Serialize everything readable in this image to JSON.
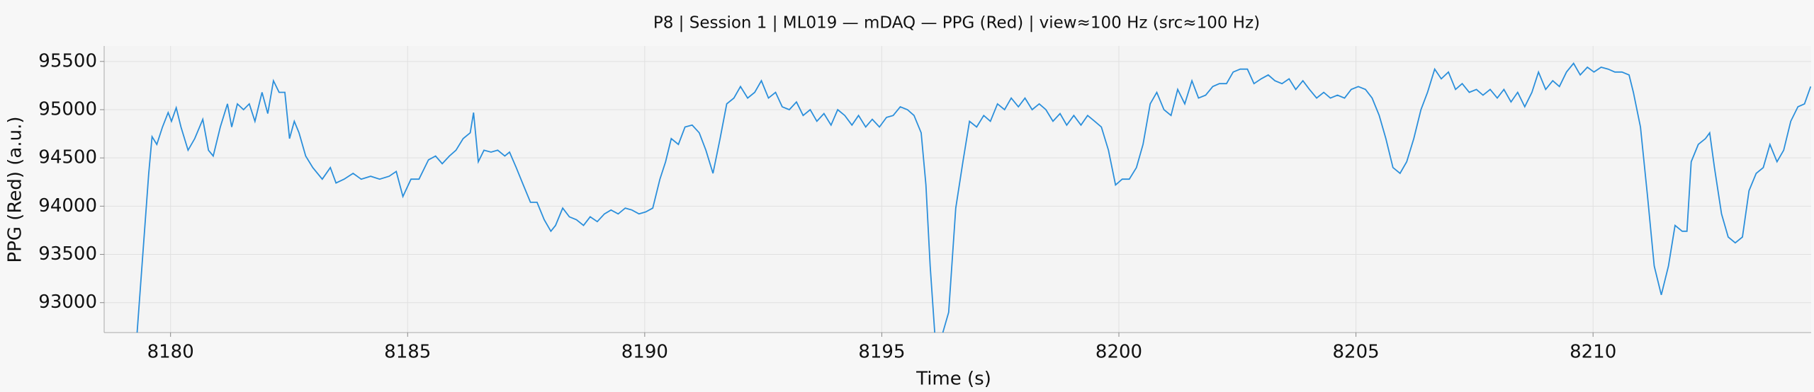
{
  "chart_data": {
    "type": "line",
    "title": "P8 | Session 1 | ML019 — mDAQ — PPG (Red) | view≈100 Hz (src≈100 Hz)",
    "xlabel": "Time (s)",
    "ylabel": "PPG (Red) (a.u.)",
    "color": "#2b8fdb",
    "grid": true,
    "xlim": [
      8178.6,
      8214.6
    ],
    "ylim": [
      92690,
      95660
    ],
    "xticks": [
      8180,
      8185,
      8190,
      8195,
      8200,
      8205,
      8210
    ],
    "yticks": [
      93000,
      93500,
      94000,
      94500,
      95000,
      95500
    ],
    "x": [
      8179.29,
      8179.54,
      8179.61,
      8179.71,
      8179.83,
      8179.95,
      8180.02,
      8180.12,
      8180.22,
      8180.37,
      8180.51,
      8180.68,
      8180.8,
      8180.9,
      8181.05,
      8181.2,
      8181.29,
      8181.41,
      8181.54,
      8181.66,
      8181.78,
      8181.93,
      8182.05,
      8182.17,
      8182.29,
      8182.41,
      8182.51,
      8182.61,
      8182.71,
      8182.85,
      8183.0,
      8183.2,
      8183.37,
      8183.49,
      8183.66,
      8183.85,
      8184.02,
      8184.22,
      8184.41,
      8184.61,
      8184.76,
      8184.9,
      8185.07,
      8185.24,
      8185.44,
      8185.59,
      8185.73,
      8185.88,
      8186.02,
      8186.17,
      8186.32,
      8186.39,
      8186.49,
      8186.61,
      8186.76,
      8186.9,
      8187.05,
      8187.15,
      8187.29,
      8187.44,
      8187.59,
      8187.73,
      8187.88,
      8188.02,
      8188.12,
      8188.27,
      8188.41,
      8188.56,
      8188.71,
      8188.85,
      8189.0,
      8189.15,
      8189.29,
      8189.44,
      8189.59,
      8189.73,
      8189.88,
      8190.02,
      8190.17,
      8190.32,
      8190.44,
      8190.56,
      8190.71,
      8190.85,
      8191.0,
      8191.15,
      8191.29,
      8191.44,
      8191.59,
      8191.73,
      8191.88,
      8192.02,
      8192.17,
      8192.32,
      8192.46,
      8192.61,
      8192.76,
      8192.9,
      8193.05,
      8193.2,
      8193.34,
      8193.49,
      8193.63,
      8193.78,
      8193.93,
      8194.07,
      8194.22,
      8194.37,
      8194.51,
      8194.66,
      8194.8,
      8194.95,
      8195.1,
      8195.24,
      8195.39,
      8195.54,
      8195.68,
      8195.83,
      8195.93,
      8196.02,
      8196.12,
      8196.27,
      8196.41,
      8196.56,
      8196.71,
      8196.85,
      8197.0,
      8197.15,
      8197.29,
      8197.44,
      8197.59,
      8197.73,
      8197.88,
      8198.02,
      8198.17,
      8198.32,
      8198.46,
      8198.61,
      8198.76,
      8198.9,
      8199.05,
      8199.2,
      8199.34,
      8199.49,
      8199.63,
      8199.78,
      8199.93,
      8200.07,
      8200.22,
      8200.37,
      8200.51,
      8200.66,
      8200.8,
      8200.95,
      8201.1,
      8201.24,
      8201.39,
      8201.54,
      8201.68,
      8201.83,
      8201.98,
      8202.12,
      8202.27,
      8202.41,
      8202.56,
      8202.71,
      8202.85,
      8203.0,
      8203.15,
      8203.29,
      8203.44,
      8203.59,
      8203.73,
      8203.88,
      8204.02,
      8204.17,
      8204.32,
      8204.46,
      8204.61,
      8204.76,
      8204.9,
      8205.05,
      8205.2,
      8205.34,
      8205.49,
      8205.63,
      8205.78,
      8205.93,
      8206.07,
      8206.22,
      8206.37,
      8206.51,
      8206.66,
      8206.8,
      8206.95,
      8207.1,
      8207.24,
      8207.39,
      8207.54,
      8207.68,
      8207.83,
      8207.98,
      8208.12,
      8208.27,
      8208.41,
      8208.56,
      8208.71,
      8208.85,
      8209.0,
      8209.15,
      8209.29,
      8209.44,
      8209.59,
      8209.73,
      8209.88,
      8210.02,
      8210.17,
      8210.32,
      8210.46,
      8210.61,
      8210.76,
      8210.85,
      8211.0,
      8211.15,
      8211.29,
      8211.44,
      8211.59,
      8211.73,
      8211.88,
      8211.98,
      8212.07,
      8212.22,
      8212.37,
      8212.46,
      8212.56,
      8212.71,
      8212.85,
      8213.0,
      8213.15,
      8213.29,
      8213.44,
      8213.59,
      8213.73,
      8213.88,
      8214.02,
      8214.17,
      8214.32,
      8214.46,
      8214.59
    ],
    "values": [
      92660,
      94340,
      94720,
      94640,
      94820,
      94970,
      94880,
      95020,
      94820,
      94580,
      94700,
      94900,
      94580,
      94520,
      94820,
      95060,
      94820,
      95060,
      95000,
      95060,
      94880,
      95180,
      94960,
      95300,
      95180,
      95180,
      94700,
      94880,
      94760,
      94520,
      94400,
      94280,
      94400,
      94240,
      94280,
      94340,
      94280,
      94310,
      94280,
      94310,
      94360,
      94100,
      94280,
      94280,
      94480,
      94520,
      94440,
      94520,
      94580,
      94700,
      94760,
      94970,
      94460,
      94580,
      94560,
      94580,
      94520,
      94560,
      94400,
      94220,
      94040,
      94040,
      93860,
      93740,
      93800,
      93980,
      93890,
      93860,
      93800,
      93890,
      93840,
      93920,
      93960,
      93920,
      93980,
      93960,
      93920,
      93940,
      93980,
      94280,
      94460,
      94700,
      94640,
      94820,
      94840,
      94760,
      94580,
      94340,
      94700,
      95060,
      95120,
      95240,
      95120,
      95180,
      95300,
      95120,
      95180,
      95030,
      95000,
      95080,
      94940,
      95000,
      94880,
      94960,
      94840,
      95000,
      94940,
      94840,
      94940,
      94820,
      94900,
      94820,
      94920,
      94940,
      95030,
      95000,
      94940,
      94760,
      94220,
      93380,
      92660,
      92660,
      92900,
      93980,
      94460,
      94880,
      94820,
      94940,
      94880,
      95060,
      95000,
      95120,
      95030,
      95120,
      95000,
      95060,
      95000,
      94880,
      94960,
      94840,
      94940,
      94840,
      94940,
      94880,
      94820,
      94580,
      94220,
      94280,
      94280,
      94400,
      94640,
      95060,
      95180,
      95000,
      94940,
      95210,
      95060,
      95300,
      95120,
      95150,
      95240,
      95270,
      95270,
      95390,
      95420,
      95420,
      95270,
      95320,
      95360,
      95300,
      95270,
      95320,
      95210,
      95300,
      95210,
      95120,
      95180,
      95120,
      95150,
      95120,
      95210,
      95240,
      95210,
      95120,
      94940,
      94700,
      94400,
      94340,
      94460,
      94700,
      95000,
      95180,
      95420,
      95320,
      95390,
      95210,
      95270,
      95180,
      95210,
      95150,
      95210,
      95120,
      95210,
      95080,
      95180,
      95030,
      95180,
      95390,
      95210,
      95300,
      95240,
      95390,
      95480,
      95360,
      95440,
      95390,
      95440,
      95420,
      95390,
      95390,
      95360,
      95180,
      94820,
      94100,
      93380,
      93080,
      93380,
      93800,
      93740,
      93740,
      94460,
      94640,
      94700,
      94760,
      94400,
      93920,
      93680,
      93620,
      93680,
      94160,
      94340,
      94400,
      94640,
      94460,
      94580,
      94880,
      95030,
      95060,
      95240
    ]
  }
}
